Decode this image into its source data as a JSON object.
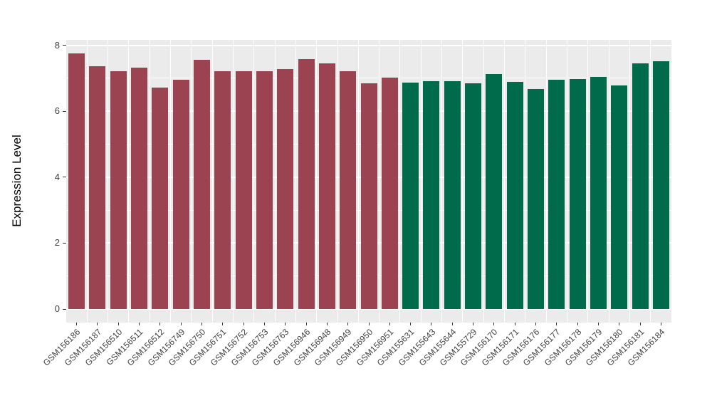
{
  "figure": {
    "background_color": "#FFFFFF",
    "panel_background_color": "#EBEBEB",
    "grid_color": "#FFFFFF",
    "axis_text_color": "#404040",
    "tick_mark_color": "#333333"
  },
  "chart_data": {
    "type": "bar",
    "title": "",
    "xlabel": "",
    "ylabel": "Expression Level",
    "ylim": [
      0,
      8.17
    ],
    "yticks": [
      0,
      2,
      4,
      6,
      8
    ],
    "yticks_minor": [
      1,
      3,
      5,
      7
    ],
    "grid": true,
    "legend": "none",
    "group_colors": [
      "#9B4350",
      "#006B4B"
    ],
    "categories": [
      "GSM156186",
      "GSM156187",
      "GSM156510",
      "GSM156511",
      "GSM156512",
      "GSM156749",
      "GSM156750",
      "GSM156751",
      "GSM156752",
      "GSM156753",
      "GSM156763",
      "GSM156946",
      "GSM156948",
      "GSM156949",
      "GSM156950",
      "GSM156951",
      "GSM155631",
      "GSM155643",
      "GSM155644",
      "GSM155729",
      "GSM156170",
      "GSM156171",
      "GSM156176",
      "GSM156177",
      "GSM156178",
      "GSM156179",
      "GSM156180",
      "GSM156181",
      "GSM156184"
    ],
    "values": [
      7.76,
      7.37,
      7.22,
      7.33,
      6.72,
      6.96,
      7.56,
      7.22,
      7.22,
      7.22,
      7.27,
      7.58,
      7.45,
      7.22,
      6.84,
      7.03,
      6.88,
      6.92,
      6.92,
      6.85,
      7.12,
      6.9,
      6.67,
      6.95,
      6.97,
      7.05,
      6.79,
      7.46,
      7.51
    ],
    "bar_group_index": [
      0,
      0,
      0,
      0,
      0,
      0,
      0,
      0,
      0,
      0,
      0,
      0,
      0,
      0,
      0,
      0,
      1,
      1,
      1,
      1,
      1,
      1,
      1,
      1,
      1,
      1,
      1,
      1,
      1
    ]
  }
}
